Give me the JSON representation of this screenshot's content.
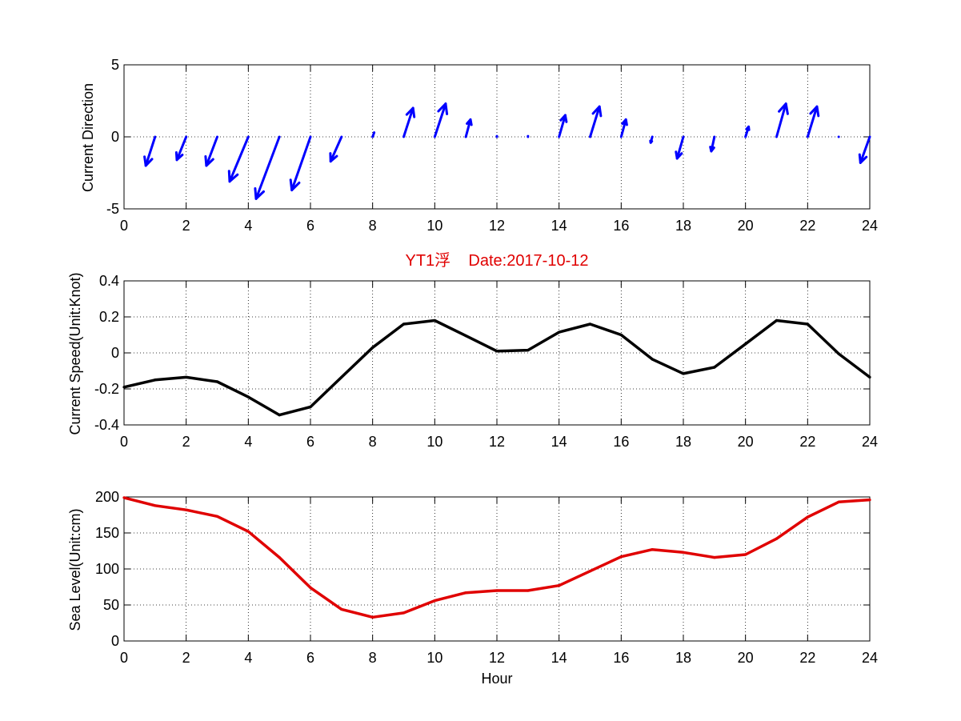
{
  "chart_data": [
    {
      "type": "quiver",
      "title": "",
      "xlabel": "",
      "ylabel": "Current Direction",
      "xlim": [
        0,
        24
      ],
      "ylim": [
        -5,
        5
      ],
      "xticks": [
        0,
        2,
        4,
        6,
        8,
        10,
        12,
        14,
        16,
        18,
        20,
        22,
        24
      ],
      "yticks": [
        -5,
        0,
        5
      ],
      "grid": true,
      "color": "#0000ff",
      "x": [
        1,
        2,
        3,
        4,
        5,
        6,
        7,
        8,
        9,
        10,
        11,
        12,
        13,
        14,
        15,
        16,
        17,
        18,
        19,
        20,
        21,
        22,
        23,
        24
      ],
      "u": [
        -0.3,
        -0.3,
        -0.35,
        -0.6,
        -0.75,
        -0.6,
        -0.35,
        0.05,
        0.3,
        0.35,
        0.15,
        0,
        0,
        0.2,
        0.3,
        0.15,
        -0.05,
        -0.2,
        -0.1,
        0.1,
        0.3,
        0.3,
        0,
        -0.3
      ],
      "v": [
        -2,
        -1.6,
        -2,
        -3.1,
        -4.3,
        -3.7,
        -1.7,
        0.3,
        2,
        2.3,
        1.2,
        0.05,
        0.05,
        1.5,
        2.1,
        1.2,
        -0.4,
        -1.5,
        -1,
        0.7,
        2.3,
        2.1,
        0,
        -1.8
      ]
    },
    {
      "type": "line",
      "title": "YT1浮    Date:2017-10-12",
      "xlabel": "",
      "ylabel": "Current Speed(Unit:Knot)",
      "xlim": [
        0,
        24
      ],
      "ylim": [
        -0.4,
        0.4
      ],
      "xticks": [
        0,
        2,
        4,
        6,
        8,
        10,
        12,
        14,
        16,
        18,
        20,
        22,
        24
      ],
      "yticks": [
        -0.4,
        -0.2,
        0,
        0.2,
        0.4
      ],
      "grid": true,
      "color": "#000000",
      "x": [
        0,
        1,
        2,
        3,
        4,
        5,
        6,
        7,
        8,
        9,
        10,
        11,
        12,
        13,
        14,
        15,
        16,
        17,
        18,
        19,
        20,
        21,
        22,
        23,
        24
      ],
      "y": [
        -0.19,
        -0.15,
        -0.135,
        -0.16,
        -0.245,
        -0.345,
        -0.3,
        -0.135,
        0.03,
        0.16,
        0.18,
        0.095,
        0.01,
        0.015,
        0.115,
        0.16,
        0.1,
        -0.035,
        -0.115,
        -0.08,
        0.05,
        0.18,
        0.16,
        -0.005,
        -0.135
      ]
    },
    {
      "type": "line",
      "title": "",
      "xlabel": "Hour",
      "ylabel": "Sea Level(Unit:cm)",
      "xlim": [
        0,
        24
      ],
      "ylim": [
        0,
        200
      ],
      "xticks": [
        0,
        2,
        4,
        6,
        8,
        10,
        12,
        14,
        16,
        18,
        20,
        22,
        24
      ],
      "yticks": [
        0,
        50,
        100,
        150,
        200
      ],
      "grid": true,
      "color": "#e00000",
      "x": [
        0,
        1,
        2,
        3,
        4,
        5,
        6,
        7,
        8,
        9,
        10,
        11,
        12,
        13,
        14,
        15,
        16,
        17,
        18,
        19,
        20,
        21,
        22,
        23,
        24
      ],
      "y": [
        199,
        188,
        182,
        173,
        152,
        116,
        74,
        44,
        33,
        39,
        56,
        67,
        70,
        70,
        77,
        97,
        117,
        127,
        123,
        116,
        120,
        142,
        172,
        193,
        196
      ]
    }
  ]
}
